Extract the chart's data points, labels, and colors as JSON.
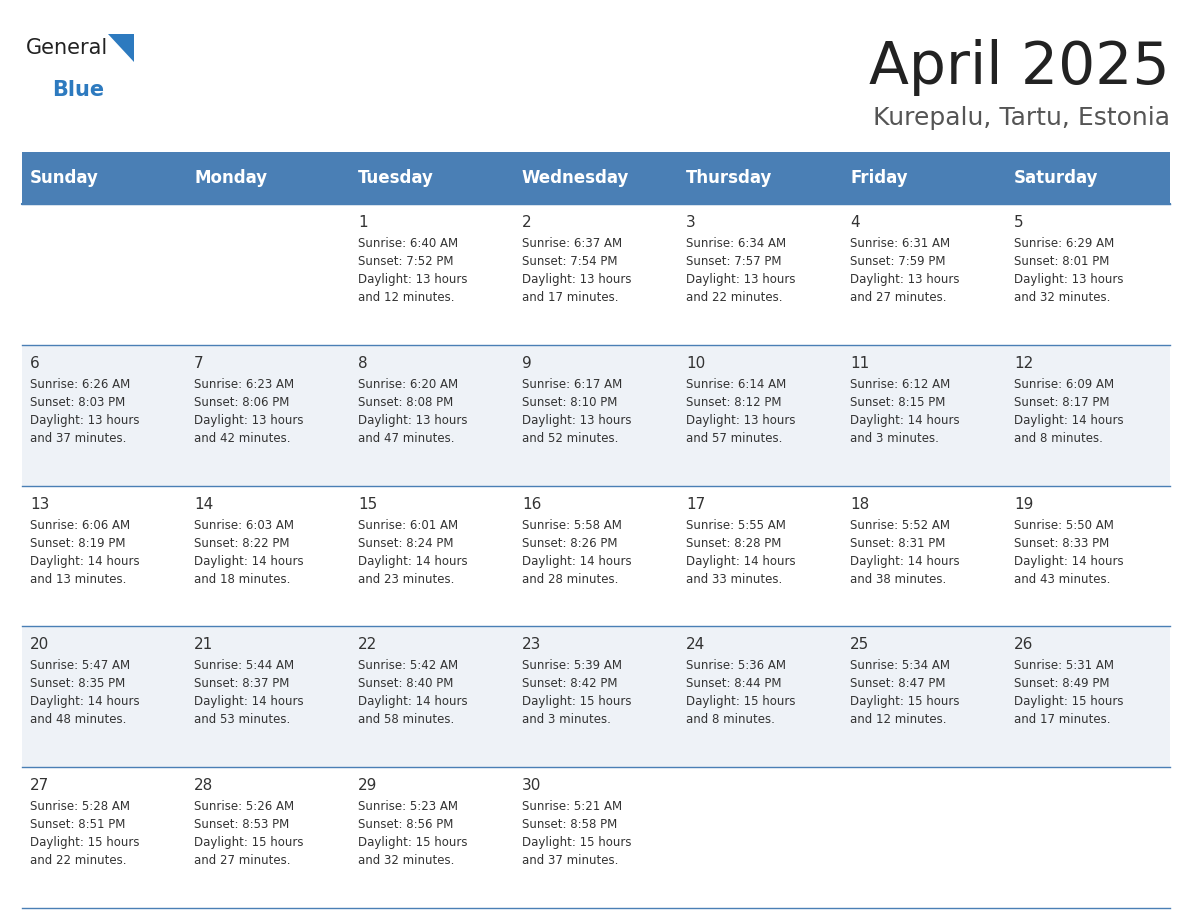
{
  "title": "April 2025",
  "subtitle": "Kurepalu, Tartu, Estonia",
  "header_bg": "#4a7fb5",
  "header_text": "#ffffff",
  "row_bg_odd": "#eef2f7",
  "row_bg_even": "#ffffff",
  "separator_color": "#4a7fb5",
  "text_color": "#333333",
  "logo_general_color": "#222222",
  "logo_blue_color": "#2d7abf",
  "logo_triangle_color": "#2d7abf",
  "title_color": "#222222",
  "subtitle_color": "#555555",
  "day_names": [
    "Sunday",
    "Monday",
    "Tuesday",
    "Wednesday",
    "Thursday",
    "Friday",
    "Saturday"
  ],
  "calendar": [
    [
      {
        "day": "",
        "sunrise": "",
        "sunset": "",
        "daylight": ""
      },
      {
        "day": "",
        "sunrise": "",
        "sunset": "",
        "daylight": ""
      },
      {
        "day": "1",
        "sunrise": "6:40 AM",
        "sunset": "7:52 PM",
        "daylight": "13 hours\nand 12 minutes."
      },
      {
        "day": "2",
        "sunrise": "6:37 AM",
        "sunset": "7:54 PM",
        "daylight": "13 hours\nand 17 minutes."
      },
      {
        "day": "3",
        "sunrise": "6:34 AM",
        "sunset": "7:57 PM",
        "daylight": "13 hours\nand 22 minutes."
      },
      {
        "day": "4",
        "sunrise": "6:31 AM",
        "sunset": "7:59 PM",
        "daylight": "13 hours\nand 27 minutes."
      },
      {
        "day": "5",
        "sunrise": "6:29 AM",
        "sunset": "8:01 PM",
        "daylight": "13 hours\nand 32 minutes."
      }
    ],
    [
      {
        "day": "6",
        "sunrise": "6:26 AM",
        "sunset": "8:03 PM",
        "daylight": "13 hours\nand 37 minutes."
      },
      {
        "day": "7",
        "sunrise": "6:23 AM",
        "sunset": "8:06 PM",
        "daylight": "13 hours\nand 42 minutes."
      },
      {
        "day": "8",
        "sunrise": "6:20 AM",
        "sunset": "8:08 PM",
        "daylight": "13 hours\nand 47 minutes."
      },
      {
        "day": "9",
        "sunrise": "6:17 AM",
        "sunset": "8:10 PM",
        "daylight": "13 hours\nand 52 minutes."
      },
      {
        "day": "10",
        "sunrise": "6:14 AM",
        "sunset": "8:12 PM",
        "daylight": "13 hours\nand 57 minutes."
      },
      {
        "day": "11",
        "sunrise": "6:12 AM",
        "sunset": "8:15 PM",
        "daylight": "14 hours\nand 3 minutes."
      },
      {
        "day": "12",
        "sunrise": "6:09 AM",
        "sunset": "8:17 PM",
        "daylight": "14 hours\nand 8 minutes."
      }
    ],
    [
      {
        "day": "13",
        "sunrise": "6:06 AM",
        "sunset": "8:19 PM",
        "daylight": "14 hours\nand 13 minutes."
      },
      {
        "day": "14",
        "sunrise": "6:03 AM",
        "sunset": "8:22 PM",
        "daylight": "14 hours\nand 18 minutes."
      },
      {
        "day": "15",
        "sunrise": "6:01 AM",
        "sunset": "8:24 PM",
        "daylight": "14 hours\nand 23 minutes."
      },
      {
        "day": "16",
        "sunrise": "5:58 AM",
        "sunset": "8:26 PM",
        "daylight": "14 hours\nand 28 minutes."
      },
      {
        "day": "17",
        "sunrise": "5:55 AM",
        "sunset": "8:28 PM",
        "daylight": "14 hours\nand 33 minutes."
      },
      {
        "day": "18",
        "sunrise": "5:52 AM",
        "sunset": "8:31 PM",
        "daylight": "14 hours\nand 38 minutes."
      },
      {
        "day": "19",
        "sunrise": "5:50 AM",
        "sunset": "8:33 PM",
        "daylight": "14 hours\nand 43 minutes."
      }
    ],
    [
      {
        "day": "20",
        "sunrise": "5:47 AM",
        "sunset": "8:35 PM",
        "daylight": "14 hours\nand 48 minutes."
      },
      {
        "day": "21",
        "sunrise": "5:44 AM",
        "sunset": "8:37 PM",
        "daylight": "14 hours\nand 53 minutes."
      },
      {
        "day": "22",
        "sunrise": "5:42 AM",
        "sunset": "8:40 PM",
        "daylight": "14 hours\nand 58 minutes."
      },
      {
        "day": "23",
        "sunrise": "5:39 AM",
        "sunset": "8:42 PM",
        "daylight": "15 hours\nand 3 minutes."
      },
      {
        "day": "24",
        "sunrise": "5:36 AM",
        "sunset": "8:44 PM",
        "daylight": "15 hours\nand 8 minutes."
      },
      {
        "day": "25",
        "sunrise": "5:34 AM",
        "sunset": "8:47 PM",
        "daylight": "15 hours\nand 12 minutes."
      },
      {
        "day": "26",
        "sunrise": "5:31 AM",
        "sunset": "8:49 PM",
        "daylight": "15 hours\nand 17 minutes."
      }
    ],
    [
      {
        "day": "27",
        "sunrise": "5:28 AM",
        "sunset": "8:51 PM",
        "daylight": "15 hours\nand 22 minutes."
      },
      {
        "day": "28",
        "sunrise": "5:26 AM",
        "sunset": "8:53 PM",
        "daylight": "15 hours\nand 27 minutes."
      },
      {
        "day": "29",
        "sunrise": "5:23 AM",
        "sunset": "8:56 PM",
        "daylight": "15 hours\nand 32 minutes."
      },
      {
        "day": "30",
        "sunrise": "5:21 AM",
        "sunset": "8:58 PM",
        "daylight": "15 hours\nand 37 minutes."
      },
      {
        "day": "",
        "sunrise": "",
        "sunset": "",
        "daylight": ""
      },
      {
        "day": "",
        "sunrise": "",
        "sunset": "",
        "daylight": ""
      },
      {
        "day": "",
        "sunrise": "",
        "sunset": "",
        "daylight": ""
      }
    ]
  ],
  "fig_width": 11.88,
  "fig_height": 9.18,
  "dpi": 100
}
